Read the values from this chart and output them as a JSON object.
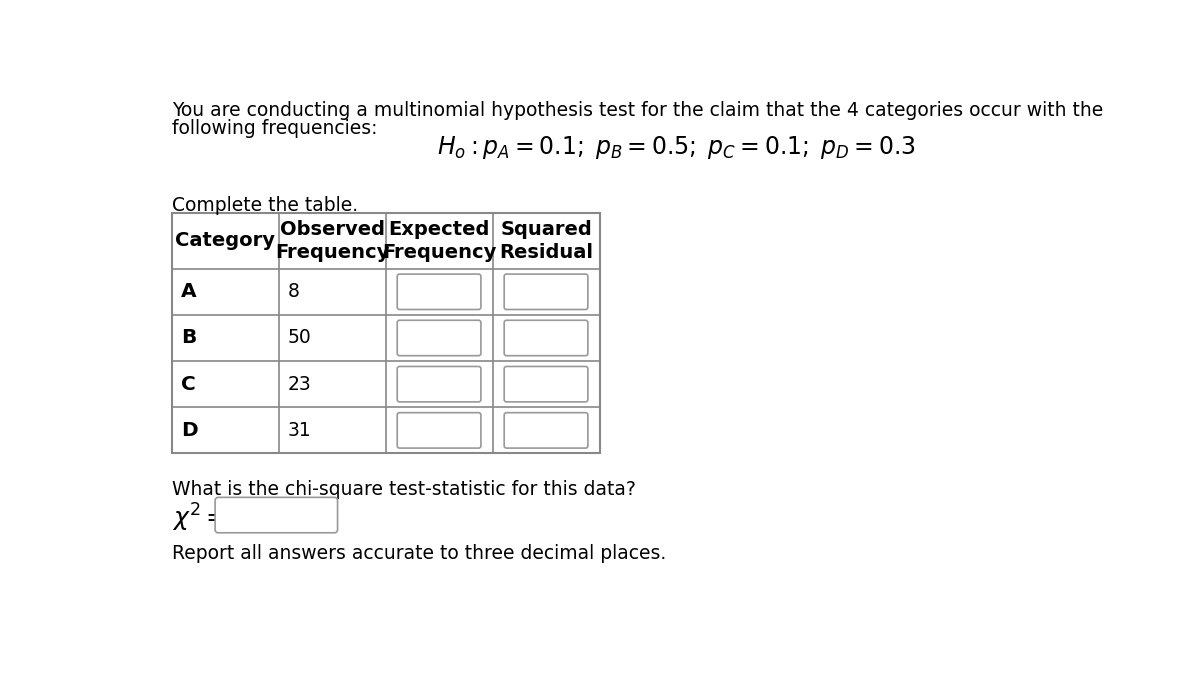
{
  "title_line1": "You are conducting a multinomial hypothesis test for the claim that the 4 categories occur with the",
  "title_line2": "following frequencies:",
  "complete_table_text": "Complete the table.",
  "col_headers_line1": [
    "Category",
    "Observed",
    "Expected",
    "Squared"
  ],
  "col_headers_line2": [
    "",
    "Frequency",
    "Frequency",
    "Residual"
  ],
  "categories": [
    "A",
    "B",
    "C",
    "D"
  ],
  "observed": [
    "8",
    "50",
    "23",
    "31"
  ],
  "question_text": "What is the chi-square test-statistic for this data?",
  "report_text": "Report all answers accurate to three decimal places.",
  "bg_color": "#ffffff",
  "text_color": "#000000",
  "table_border_color": "#888888",
  "font_size_body": 13.5,
  "font_size_header": 14,
  "font_size_hypothesis": 17
}
